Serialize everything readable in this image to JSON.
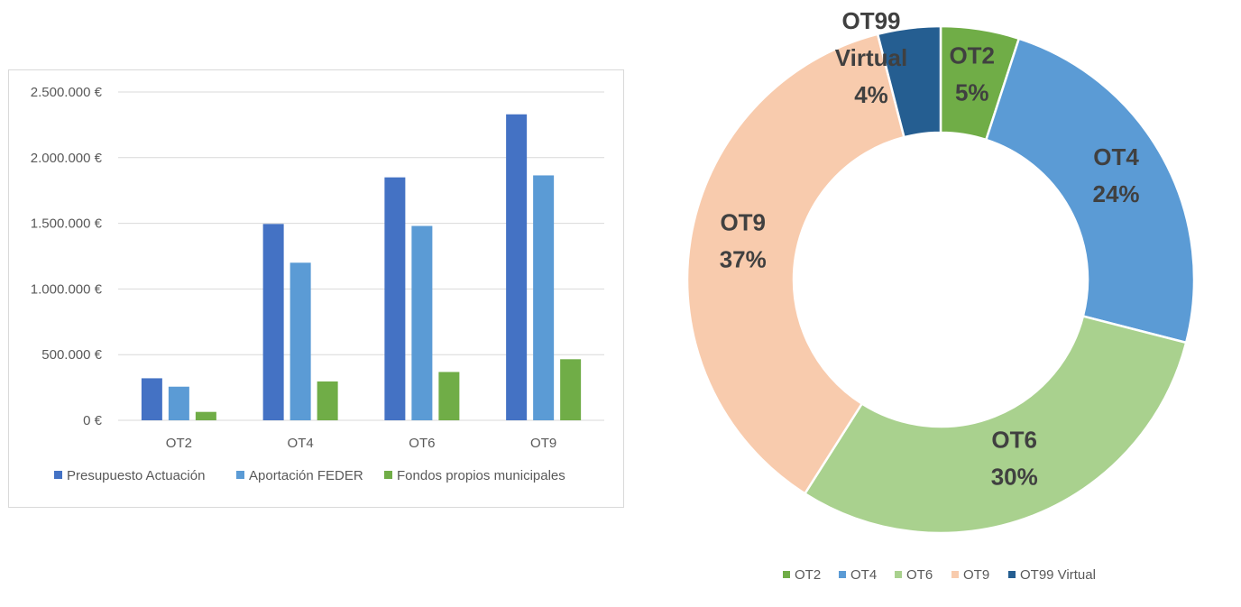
{
  "chart_data": [
    {
      "type": "bar",
      "title": "",
      "xlabel": "",
      "ylabel": "",
      "categories": [
        "OT2",
        "OT4",
        "OT6",
        "OT9"
      ],
      "series": [
        {
          "name": "Presupuesto Actuación",
          "color": "#4472c4",
          "values": [
            320000,
            1495000,
            1850000,
            2330000
          ]
        },
        {
          "name": "Aportación FEDER",
          "color": "#5b9bd5",
          "values": [
            256000,
            1200000,
            1480000,
            1865000
          ]
        },
        {
          "name": "Fondos propios municipales",
          "color": "#70ad47",
          "values": [
            64000,
            296000,
            368000,
            465000
          ]
        }
      ],
      "ylim": [
        0,
        2500000
      ],
      "yticks": [
        {
          "value": 0,
          "label": "0 €"
        },
        {
          "value": 500000,
          "label": "500.000 €"
        },
        {
          "value": 1000000,
          "label": "1.000.000 €"
        },
        {
          "value": 1500000,
          "label": "1.500.000 €"
        },
        {
          "value": 2000000,
          "label": "2.000.000 €"
        },
        {
          "value": 2500000,
          "label": "2.500.000 €"
        }
      ],
      "grid": true,
      "legend_position": "bottom"
    },
    {
      "type": "pie",
      "title": "",
      "donut": true,
      "slices": [
        {
          "name": "OT2",
          "value": 5,
          "label": "5%",
          "color": "#70ad47"
        },
        {
          "name": "OT4",
          "value": 24,
          "label": "24%",
          "color": "#5b9bd5"
        },
        {
          "name": "OT6",
          "value": 30,
          "label": "30%",
          "color": "#a9d18e"
        },
        {
          "name": "OT9",
          "value": 37,
          "label": "37%",
          "color": "#f8cbad"
        },
        {
          "name": "OT99 Virtual",
          "value": 4,
          "label": "4%",
          "color": "#255e91"
        }
      ],
      "legend_position": "bottom"
    }
  ]
}
